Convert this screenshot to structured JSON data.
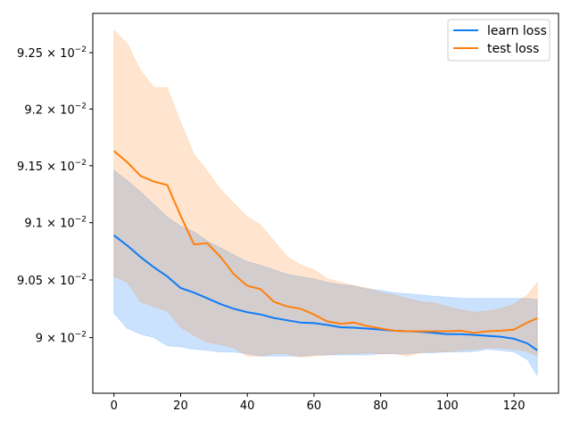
{
  "chart_data": {
    "type": "line",
    "title": "",
    "xlabel": "",
    "ylabel": "",
    "xlim": [
      -6.35,
      133.35
    ],
    "ylim": [
      0.08952,
      0.09285
    ],
    "yscale": "log",
    "grid": false,
    "legend_position": "top-right",
    "x_ticks": [
      {
        "value": 0,
        "label": "0"
      },
      {
        "value": 20,
        "label": "20"
      },
      {
        "value": 40,
        "label": "40"
      },
      {
        "value": 60,
        "label": "60"
      },
      {
        "value": 80,
        "label": "80"
      },
      {
        "value": 100,
        "label": "100"
      },
      {
        "value": 120,
        "label": "120"
      }
    ],
    "y_ticks": [
      {
        "value": 0.0925,
        "mantissa": "9.25",
        "base": "10",
        "exponent": "−2"
      },
      {
        "value": 0.092,
        "mantissa": "9.2",
        "base": "10",
        "exponent": "−2"
      },
      {
        "value": 0.0915,
        "mantissa": "9.15",
        "base": "10",
        "exponent": "−2"
      },
      {
        "value": 0.091,
        "mantissa": "9.1",
        "base": "10",
        "exponent": "−2"
      },
      {
        "value": 0.0905,
        "mantissa": "9.05",
        "base": "10",
        "exponent": "−2"
      },
      {
        "value": 0.09,
        "mantissa": "9",
        "base": "10",
        "exponent": "−2"
      }
    ],
    "x": [
      0,
      4,
      8,
      12,
      16,
      20,
      24,
      28,
      32,
      36,
      40,
      44,
      48,
      52,
      56,
      60,
      64,
      68,
      72,
      76,
      80,
      84,
      88,
      92,
      96,
      100,
      104,
      108,
      112,
      116,
      120,
      124,
      127
    ],
    "series": [
      {
        "name": "learn loss",
        "color": "#0f7cf5",
        "values": [
          0.09089,
          0.0908,
          0.0907,
          0.09061,
          0.09053,
          0.09043,
          0.09039,
          0.09034,
          0.09029,
          0.09025,
          0.09022,
          0.0902,
          0.09017,
          0.09015,
          0.09013,
          0.090125,
          0.09011,
          0.09009,
          0.090086,
          0.090078,
          0.09007,
          0.09006,
          0.090055,
          0.09005,
          0.09004,
          0.09003,
          0.09003,
          0.090023,
          0.090016,
          0.090008,
          0.08999,
          0.08995,
          0.08989
        ],
        "band_upper": [
          0.09146,
          0.09137,
          0.09127,
          0.09116,
          0.09105,
          0.09097,
          0.09092,
          0.09084,
          0.09078,
          0.09072,
          0.09066,
          0.09063,
          0.09059,
          0.09055,
          0.09053,
          0.09051,
          0.09048,
          0.09046,
          0.09045,
          0.09042,
          0.09041,
          0.09039,
          0.09038,
          0.09037,
          0.09036,
          0.09035,
          0.09034,
          0.09034,
          0.09034,
          0.09034,
          0.09034,
          0.09034,
          0.09033
        ],
        "band_lower": [
          0.09021,
          0.09008,
          0.09003,
          0.09,
          0.08993,
          0.08992,
          0.0899,
          0.08989,
          0.089875,
          0.089875,
          0.08986,
          0.08984,
          0.08984,
          0.08984,
          0.08984,
          0.08985,
          0.08985,
          0.08985,
          0.08985,
          0.08985,
          0.08986,
          0.08986,
          0.08986,
          0.08987,
          0.08987,
          0.089875,
          0.089875,
          0.08988,
          0.0899,
          0.08989,
          0.089875,
          0.08981,
          0.08967
        ]
      },
      {
        "name": "test loss",
        "color": "#ff7f0e",
        "values": [
          0.09163,
          0.09153,
          0.09141,
          0.09136,
          0.09133,
          0.09106,
          0.09081,
          0.09082,
          0.0907,
          0.09055,
          0.09045,
          0.09042,
          0.09031,
          0.09027,
          0.09025,
          0.0902,
          0.09014,
          0.09012,
          0.09013,
          0.0901,
          0.09008,
          0.09006,
          0.090055,
          0.090055,
          0.090055,
          0.090055,
          0.09006,
          0.09004,
          0.090055,
          0.09006,
          0.09007,
          0.09013,
          0.09017
        ],
        "band_upper": [
          0.0927,
          0.09258,
          0.09234,
          0.09219,
          0.09219,
          0.09188,
          0.0916,
          0.09145,
          0.09129,
          0.09117,
          0.09105,
          0.09098,
          0.09084,
          0.0907,
          0.09063,
          0.09059,
          0.09051,
          0.09048,
          0.09045,
          0.09043,
          0.09039,
          0.09037,
          0.09034,
          0.09031,
          0.0903,
          0.09027,
          0.09024,
          0.09022,
          0.09023,
          0.09025,
          0.09029,
          0.09037,
          0.09048
        ],
        "band_lower": [
          0.09053,
          0.09048,
          0.09031,
          0.09027,
          0.09023,
          0.09009,
          0.09002,
          0.08996,
          0.08994,
          0.08991,
          0.08984,
          0.08984,
          0.08986,
          0.08986,
          0.08983,
          0.08984,
          0.08985,
          0.08986,
          0.08986,
          0.08987,
          0.08986,
          0.08986,
          0.08984,
          0.08987,
          0.089875,
          0.08988,
          0.08989,
          0.0899,
          0.08991,
          0.08991,
          0.0899,
          0.08988,
          0.08984
        ]
      }
    ]
  }
}
